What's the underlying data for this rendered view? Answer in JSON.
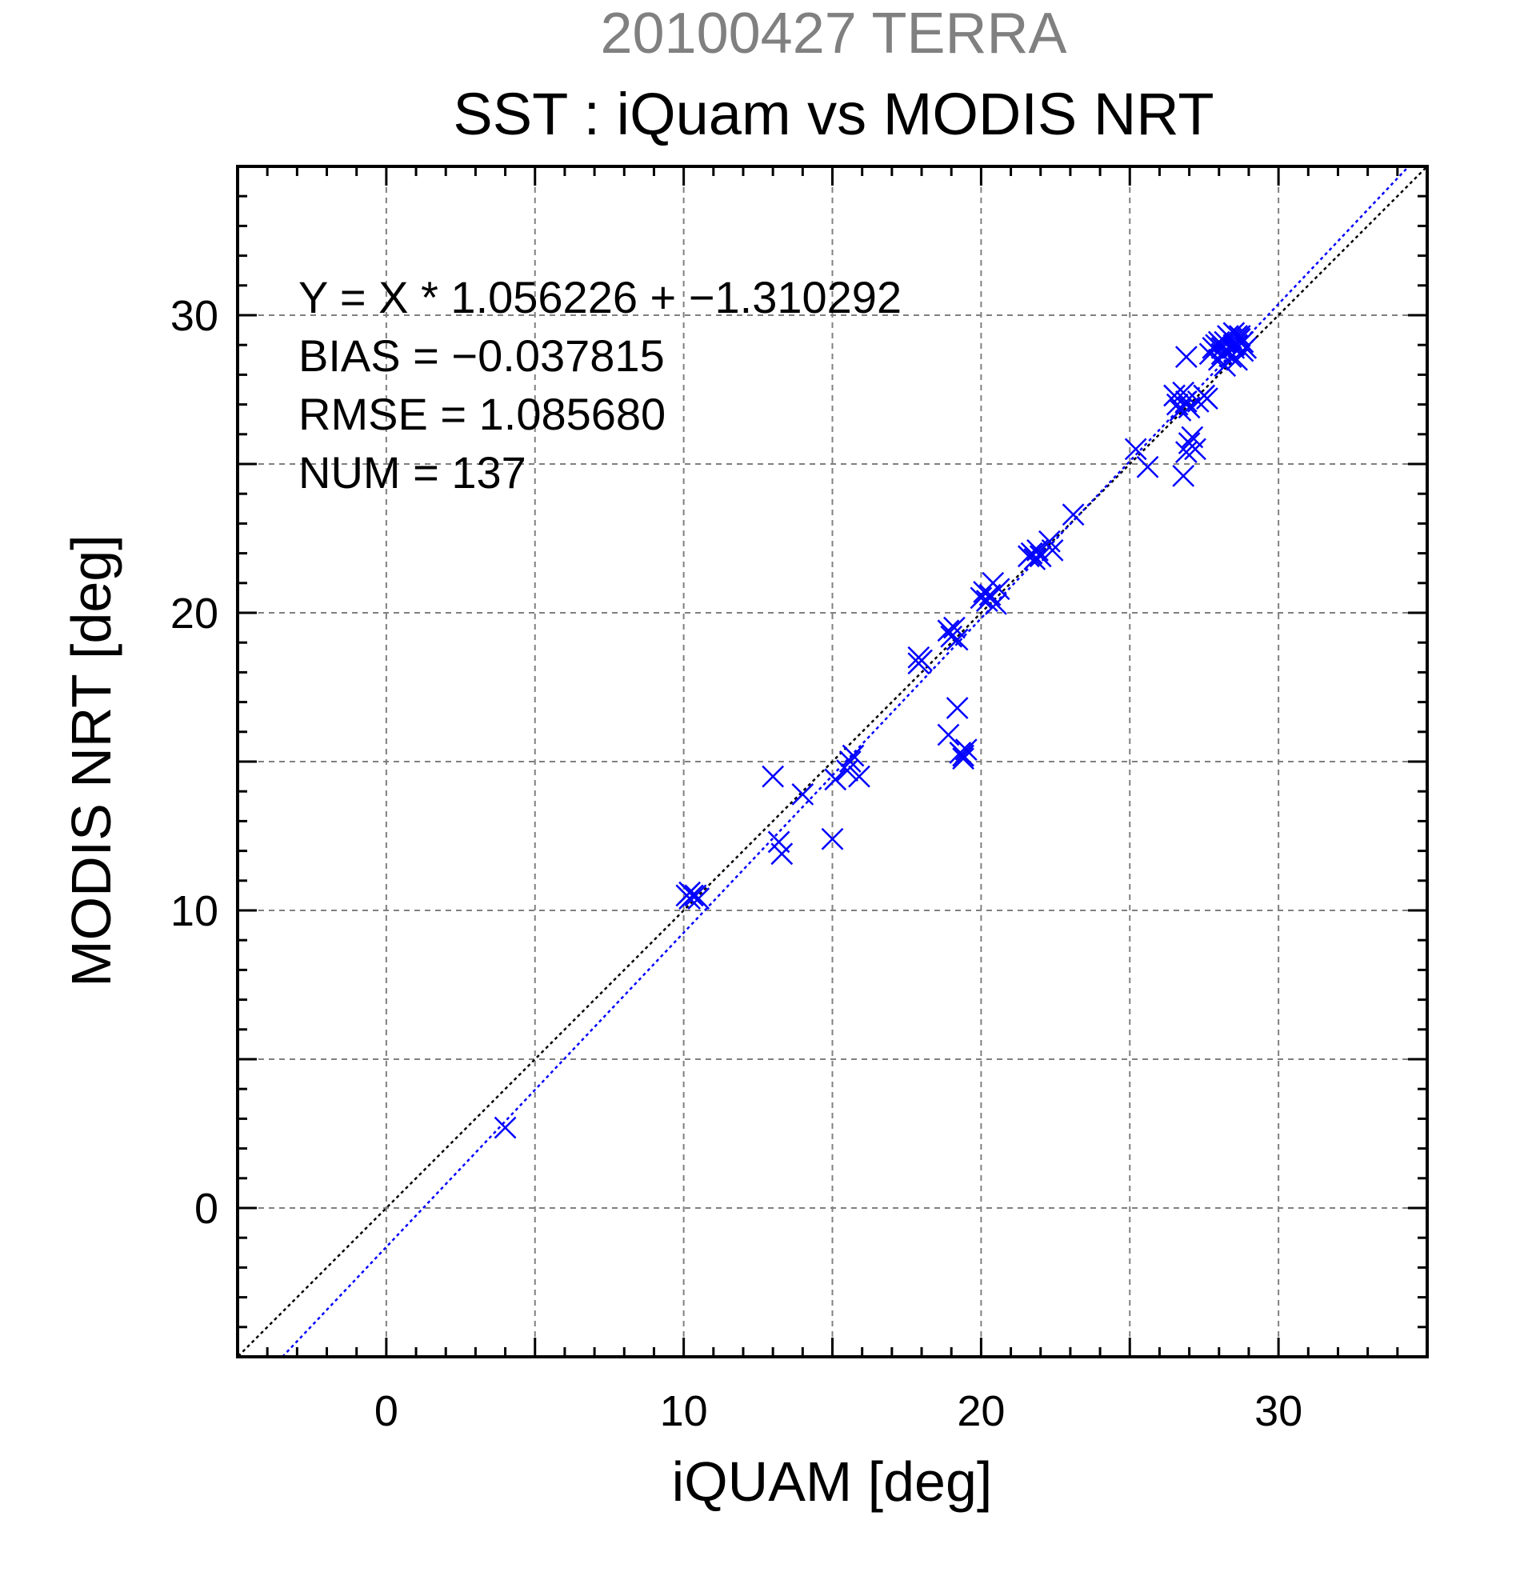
{
  "chart_data": {
    "type": "scatter",
    "date_title": "20100427 TERRA",
    "title": "SST : iQuam vs MODIS NRT",
    "xlabel": "iQUAM [deg]",
    "ylabel": "MODIS NRT [deg]",
    "xlim": [
      -5,
      35
    ],
    "ylim": [
      -5,
      35
    ],
    "xticks": [
      0,
      10,
      20,
      30
    ],
    "yticks": [
      0,
      10,
      20,
      30
    ],
    "grid": true,
    "stats": [
      "Y = X * 1.056226 + −1.310292",
      "BIAS = −0.037815",
      "RMSE = 1.085680",
      "NUM = 137"
    ],
    "fit_line": {
      "slope": 1.056226,
      "intercept": -1.310292,
      "color": "#0000ff"
    },
    "identity_line": {
      "slope": 1,
      "intercept": 0,
      "color": "#000000"
    },
    "point_color": "#0000ff",
    "points": [
      [
        4.0,
        2.7
      ],
      [
        10.1,
        10.5
      ],
      [
        10.2,
        10.4
      ],
      [
        10.3,
        10.5
      ],
      [
        10.4,
        10.5
      ],
      [
        10.2,
        10.6
      ],
      [
        10.5,
        10.4
      ],
      [
        13.0,
        14.5
      ],
      [
        13.2,
        12.3
      ],
      [
        13.3,
        11.9
      ],
      [
        14.0,
        13.9
      ],
      [
        15.0,
        12.4
      ],
      [
        15.1,
        14.4
      ],
      [
        15.5,
        14.7
      ],
      [
        15.7,
        15.2
      ],
      [
        15.9,
        14.5
      ],
      [
        15.6,
        15.0
      ],
      [
        17.9,
        18.5
      ],
      [
        18.0,
        18.4
      ],
      [
        17.9,
        18.3
      ],
      [
        18.9,
        19.4
      ],
      [
        19.0,
        19.2
      ],
      [
        19.1,
        19.5
      ],
      [
        19.2,
        19.1
      ],
      [
        18.9,
        15.9
      ],
      [
        19.2,
        16.8
      ],
      [
        19.3,
        15.3
      ],
      [
        19.4,
        15.1
      ],
      [
        19.5,
        15.4
      ],
      [
        19.4,
        15.2
      ],
      [
        20.0,
        20.5
      ],
      [
        20.1,
        20.7
      ],
      [
        20.2,
        20.4
      ],
      [
        20.3,
        20.6
      ],
      [
        20.4,
        21.0
      ],
      [
        20.5,
        20.3
      ],
      [
        20.6,
        20.8
      ],
      [
        21.6,
        21.9
      ],
      [
        21.7,
        22.0
      ],
      [
        21.8,
        21.8
      ],
      [
        21.9,
        22.1
      ],
      [
        22.0,
        21.9
      ],
      [
        22.3,
        22.4
      ],
      [
        22.4,
        22.1
      ],
      [
        23.1,
        23.3
      ],
      [
        25.2,
        25.5
      ],
      [
        25.6,
        24.9
      ],
      [
        26.5,
        27.3
      ],
      [
        26.6,
        27.0
      ],
      [
        26.7,
        26.8
      ],
      [
        26.8,
        27.4
      ],
      [
        26.9,
        27.1
      ],
      [
        27.0,
        26.9
      ],
      [
        26.9,
        25.4
      ],
      [
        27.0,
        25.7
      ],
      [
        26.8,
        24.6
      ],
      [
        27.1,
        25.9
      ],
      [
        27.2,
        25.5
      ],
      [
        27.3,
        27.1
      ],
      [
        27.5,
        27.3
      ],
      [
        27.6,
        27.2
      ],
      [
        26.9,
        28.6
      ],
      [
        27.7,
        28.7
      ],
      [
        27.8,
        28.9
      ],
      [
        27.9,
        29.0
      ],
      [
        28.0,
        28.5
      ],
      [
        28.1,
        28.7
      ],
      [
        28.2,
        29.1
      ],
      [
        28.3,
        28.8
      ],
      [
        28.4,
        29.2
      ],
      [
        28.5,
        28.9
      ],
      [
        28.6,
        29.0
      ],
      [
        28.7,
        29.2
      ],
      [
        28.8,
        28.8
      ],
      [
        28.2,
        28.3
      ],
      [
        28.4,
        28.6
      ],
      [
        28.6,
        28.5
      ],
      [
        28.3,
        29.3
      ],
      [
        28.5,
        29.4
      ],
      [
        28.7,
        29.3
      ],
      [
        28.8,
        29.1
      ],
      [
        28.9,
        28.9
      ],
      [
        28.1,
        28.9
      ],
      [
        28.5,
        29.0
      ],
      [
        28.0,
        29.1
      ],
      [
        28.6,
        29.3
      ]
    ]
  }
}
